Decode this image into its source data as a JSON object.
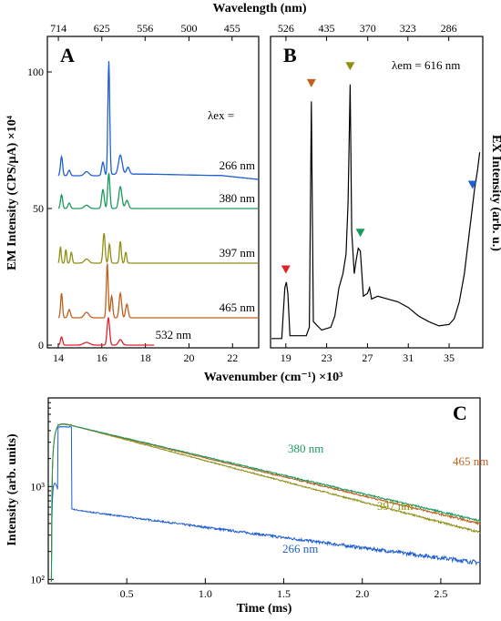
{
  "figure": {
    "top_axis_title": "Wavelength (nm)",
    "bottom_axis_title": "Wavenumber (cm⁻¹) ×10³",
    "left_axis_title": "EM Intensity (CPS/μA) ×10⁴",
    "right_axis_title": "EX Intensity (arb. u.)",
    "panel_c_x_title": "Time (ms)",
    "panel_c_y_title": "Intensity (arb. units)"
  },
  "chart_data": [
    {
      "panel": "A",
      "type": "line",
      "label_lambda_ex": "λex =",
      "xlim": [
        13.5,
        23.2
      ],
      "ylim": [
        -1,
        113
      ],
      "x_ticks": [
        "14",
        "16",
        "18",
        "20",
        "22"
      ],
      "y_ticks": [
        "0",
        "50",
        "100"
      ],
      "top_ticks": [
        "714",
        "625",
        "556",
        "500",
        "455"
      ],
      "series": [
        {
          "name": "266 nm",
          "color": "#1f5fd1",
          "offset": 62,
          "tail": 0.6,
          "peaks": [
            [
              14.15,
              7,
              0.07
            ],
            [
              14.5,
              2,
              0.08
            ],
            [
              15.3,
              1.5,
              0.15
            ],
            [
              16.05,
              5,
              0.08
            ],
            [
              16.32,
              42,
              0.06
            ],
            [
              16.85,
              7,
              0.12
            ],
            [
              17.2,
              2.5,
              0.1
            ]
          ]
        },
        {
          "name": "380 nm",
          "color": "#1a9a5c",
          "offset": 50,
          "tail": 0,
          "peaks": [
            [
              14.15,
              5,
              0.07
            ],
            [
              14.5,
              2,
              0.08
            ],
            [
              15.3,
              1.2,
              0.15
            ],
            [
              16.05,
              7,
              0.08
            ],
            [
              16.32,
              13,
              0.07
            ],
            [
              16.85,
              8,
              0.1
            ],
            [
              17.15,
              3,
              0.1
            ]
          ]
        },
        {
          "name": "397 nm",
          "color": "#8f8f14",
          "offset": 30,
          "tail": 0,
          "peaks": [
            [
              14.1,
              6,
              0.05
            ],
            [
              14.35,
              5,
              0.05
            ],
            [
              14.6,
              4,
              0.06
            ],
            [
              15.3,
              1.5,
              0.15
            ],
            [
              16.1,
              11,
              0.07
            ],
            [
              16.35,
              7,
              0.06
            ],
            [
              16.85,
              8,
              0.06
            ],
            [
              17.1,
              4,
              0.06
            ]
          ]
        },
        {
          "name": "465 nm",
          "color": "#c0601c",
          "offset": 10,
          "tail": 0,
          "peaks": [
            [
              14.15,
              9,
              0.06
            ],
            [
              14.5,
              3,
              0.08
            ],
            [
              15.3,
              2,
              0.15
            ],
            [
              16.25,
              20,
              0.06
            ],
            [
              16.45,
              8,
              0.07
            ],
            [
              16.85,
              9,
              0.08
            ],
            [
              17.15,
              5,
              0.08
            ]
          ]
        },
        {
          "name": "532 nm",
          "color": "#e0242b",
          "offset": 0,
          "tail": 0,
          "peaks": [
            [
              14.15,
              3,
              0.07
            ],
            [
              15.3,
              1,
              0.2
            ],
            [
              16.3,
              10,
              0.08
            ],
            [
              16.85,
              2,
              0.12
            ]
          ]
        }
      ]
    },
    {
      "panel": "B",
      "type": "line",
      "label_lambda_em": "λem = 616 nm",
      "xlim": [
        17.5,
        38.3
      ],
      "x_ticks": [
        "19",
        "23",
        "27",
        "31",
        "35"
      ],
      "top_ticks": [
        "526",
        "435",
        "370",
        "323",
        "286"
      ],
      "series": [
        {
          "name": "",
          "color": "#000000",
          "points": [
            [
              17.6,
              0.02
            ],
            [
              18.6,
              0.02
            ],
            [
              18.9,
              0.2
            ],
            [
              19.05,
              0.22
            ],
            [
              19.2,
              0.18
            ],
            [
              19.4,
              0.03
            ],
            [
              21.0,
              0.03
            ],
            [
              21.3,
              0.06
            ],
            [
              21.5,
              0.86
            ],
            [
              21.7,
              0.08
            ],
            [
              22.5,
              0.05
            ],
            [
              23.4,
              0.06
            ],
            [
              23.8,
              0.1
            ],
            [
              24.2,
              0.2
            ],
            [
              24.6,
              0.25
            ],
            [
              24.9,
              0.32
            ],
            [
              25.1,
              0.5
            ],
            [
              25.3,
              0.92
            ],
            [
              25.45,
              0.4
            ],
            [
              25.7,
              0.25
            ],
            [
              25.9,
              0.3
            ],
            [
              26.1,
              0.34
            ],
            [
              26.3,
              0.33
            ],
            [
              26.6,
              0.17
            ],
            [
              27.0,
              0.18
            ],
            [
              27.2,
              0.2
            ],
            [
              27.4,
              0.16
            ],
            [
              28.0,
              0.17
            ],
            [
              29.0,
              0.16
            ],
            [
              30.0,
              0.15
            ],
            [
              31.0,
              0.13
            ],
            [
              32.0,
              0.1
            ],
            [
              33.0,
              0.08
            ],
            [
              34.0,
              0.065
            ],
            [
              35.0,
              0.07
            ],
            [
              35.5,
              0.09
            ],
            [
              36.0,
              0.15
            ],
            [
              36.5,
              0.25
            ],
            [
              37.0,
              0.4
            ],
            [
              37.5,
              0.55
            ],
            [
              37.8,
              0.62
            ],
            [
              38.0,
              0.68
            ]
          ]
        }
      ],
      "markers": [
        {
          "color": "#e0242b",
          "x": 19.0,
          "y": 0.25
        },
        {
          "color": "#c0601c",
          "x": 21.5,
          "y": 0.91
        },
        {
          "color": "#8f8f14",
          "x": 25.3,
          "y": 0.97
        },
        {
          "color": "#1a9a5c",
          "x": 26.3,
          "y": 0.38
        },
        {
          "color": "#1f5fd1",
          "x": 37.3,
          "y": 0.55
        }
      ]
    },
    {
      "panel": "C",
      "type": "line",
      "xlim": [
        0,
        2.75
      ],
      "ylog": true,
      "ylim": [
        90,
        9000
      ],
      "x_ticks": [
        "0.5",
        "1.0",
        "1.5",
        "2.0",
        "2.5"
      ],
      "y_ticks": [
        "10²",
        "10³"
      ],
      "series": [
        {
          "name": "380 nm",
          "color": "#1a9a5c",
          "amp": 5200,
          "tau": 1.09
        },
        {
          "name": "465 nm",
          "color": "#c0601c",
          "amp": 5200,
          "tau": 1.06
        },
        {
          "name": "397 nm",
          "color": "#8f8f14",
          "amp": 5300,
          "tau": 0.97
        },
        {
          "name": "266 nm",
          "color": "#1f5fd1",
          "amp": 5000,
          "fast_tau": 0.025,
          "slow_amp": 600,
          "slow_tau": 1.9
        }
      ]
    }
  ]
}
